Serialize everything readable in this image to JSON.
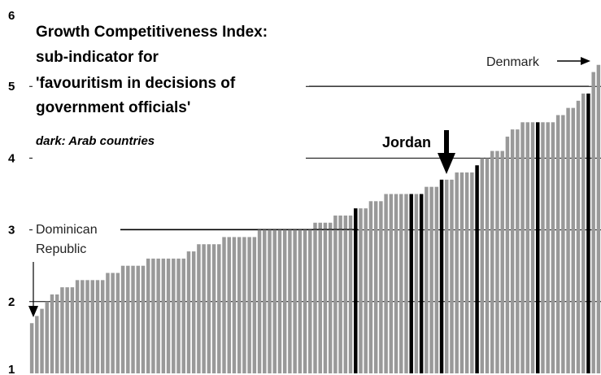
{
  "chart_data": {
    "type": "bar",
    "title_lines": [
      "Growth Competitiveness Index:",
      "sub-indicator for",
      "'favouritism in decisions of",
      "government officials'"
    ],
    "note": "dark: Arab countries",
    "ylim": [
      1,
      6
    ],
    "yticks": [
      1,
      2,
      3,
      4,
      5,
      6
    ],
    "gridlines": [
      2,
      3,
      4,
      5
    ],
    "colors": {
      "default_bar": "#999999",
      "highlight_bar": "#000000",
      "grid": "#000000"
    },
    "values": [
      1.7,
      1.8,
      1.9,
      2.0,
      2.1,
      2.1,
      2.2,
      2.2,
      2.2,
      2.3,
      2.3,
      2.3,
      2.3,
      2.3,
      2.3,
      2.4,
      2.4,
      2.4,
      2.5,
      2.5,
      2.5,
      2.5,
      2.5,
      2.6,
      2.6,
      2.6,
      2.6,
      2.6,
      2.6,
      2.6,
      2.6,
      2.7,
      2.7,
      2.8,
      2.8,
      2.8,
      2.8,
      2.8,
      2.9,
      2.9,
      2.9,
      2.9,
      2.9,
      2.9,
      2.9,
      3.0,
      3.0,
      3.0,
      3.0,
      3.0,
      3.0,
      3.0,
      3.0,
      3.0,
      3.0,
      3.0,
      3.1,
      3.1,
      3.1,
      3.1,
      3.2,
      3.2,
      3.2,
      3.2,
      3.3,
      3.3,
      3.3,
      3.4,
      3.4,
      3.4,
      3.5,
      3.5,
      3.5,
      3.5,
      3.5,
      3.5,
      3.5,
      3.5,
      3.6,
      3.6,
      3.6,
      3.7,
      3.7,
      3.7,
      3.8,
      3.8,
      3.8,
      3.8,
      3.9,
      4.0,
      4.0,
      4.1,
      4.1,
      4.1,
      4.3,
      4.4,
      4.4,
      4.5,
      4.5,
      4.5,
      4.5,
      4.5,
      4.5,
      4.5,
      4.6,
      4.6,
      4.7,
      4.7,
      4.8,
      4.9,
      4.9,
      5.2,
      5.3
    ],
    "highlight_indices": [
      64,
      75,
      77,
      81,
      88,
      100,
      110
    ],
    "annotations": {
      "left": {
        "label_lines": [
          "Dominican",
          "Republic"
        ],
        "index": 0
      },
      "jordan": {
        "label": "Jordan",
        "index": 81
      },
      "denmark": {
        "label": "Denmark",
        "index": 112
      }
    }
  }
}
